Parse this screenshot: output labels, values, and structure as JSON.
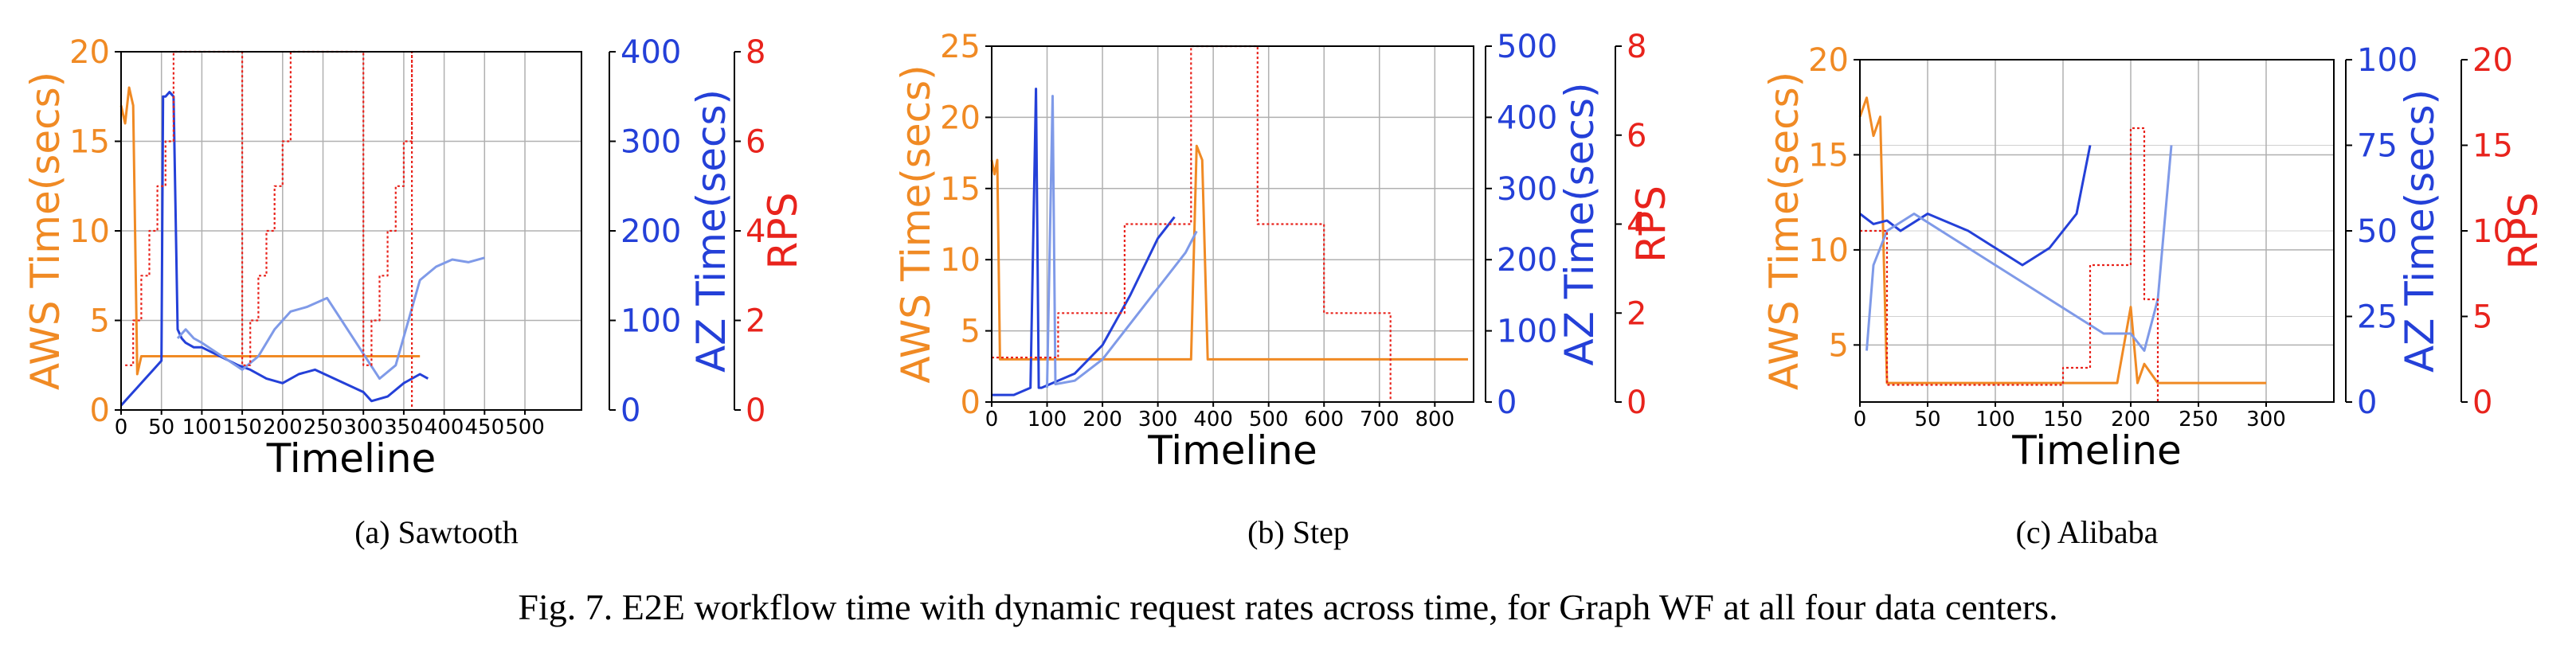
{
  "colors": {
    "aws": "#f08a24",
    "aws_light": "#f2c230",
    "az": "#2440d8",
    "az_light": "#7f9ae8",
    "rps": "#e8231c",
    "grid": "#b0b0b0"
  },
  "figure_caption": "Fig. 7.  E2E workflow time with dynamic request rates across time, for Graph WF at all four data centers.",
  "chart_data": [
    {
      "type": "line",
      "caption": "(a) Sawtooth",
      "xlabel": "Timeline",
      "y_left_label": "AWS Time(secs)",
      "y_right1_label": "AZ Time(secs)",
      "y_right2_label": "RPS",
      "xlim": [
        0,
        570
      ],
      "x_ticks": [
        0,
        50,
        100,
        150,
        200,
        250,
        300,
        350,
        400,
        450,
        500
      ],
      "aws_ylim": [
        0,
        20
      ],
      "aws_ticks": [
        0,
        5,
        10,
        15,
        20
      ],
      "az_ylim": [
        0,
        400
      ],
      "az_ticks": [
        0,
        100,
        200,
        300,
        400
      ],
      "rps_ylim": [
        0,
        8
      ],
      "rps_ticks": [
        0,
        2,
        4,
        6,
        8
      ],
      "series": [
        {
          "name": "AWS",
          "axis": "aws",
          "role": "aws",
          "x": [
            0,
            5,
            10,
            15,
            20,
            25,
            30,
            40,
            50,
            60,
            70,
            80,
            150,
            160,
            180,
            200,
            230,
            240,
            260,
            280,
            300,
            310,
            320,
            340,
            360,
            370
          ],
          "y": [
            17,
            16,
            18,
            17,
            2,
            3,
            3,
            3,
            3,
            3,
            3,
            3,
            3,
            3,
            3,
            3,
            3,
            3,
            3,
            3,
            3,
            3,
            3,
            3,
            3,
            3
          ]
        },
        {
          "name": "AZ dark",
          "axis": "az",
          "role": "az",
          "x": [
            0,
            10,
            20,
            30,
            40,
            50,
            52,
            55,
            60,
            65,
            70,
            75,
            80,
            90,
            100,
            145,
            160,
            180,
            200,
            220,
            240,
            300,
            310,
            330,
            350,
            370,
            380
          ],
          "y": [
            5,
            15,
            25,
            35,
            45,
            55,
            350,
            350,
            355,
            350,
            90,
            80,
            75,
            70,
            70,
            50,
            45,
            35,
            30,
            40,
            45,
            20,
            10,
            15,
            30,
            40,
            35
          ]
        },
        {
          "name": "AZ light",
          "axis": "az",
          "role": "az_light",
          "x": [
            70,
            80,
            90,
            100,
            150,
            170,
            190,
            210,
            230,
            255,
            320,
            340,
            370,
            390,
            410,
            430,
            450
          ],
          "y": [
            80,
            90,
            80,
            75,
            45,
            60,
            90,
            110,
            115,
            125,
            35,
            50,
            145,
            160,
            168,
            165,
            170
          ]
        },
        {
          "name": "RPS",
          "axis": "rps",
          "role": "rps",
          "step": true,
          "x": [
            5,
            15,
            25,
            35,
            45,
            55,
            65,
            150,
            160,
            170,
            180,
            190,
            200,
            210,
            300,
            310,
            320,
            330,
            340,
            350,
            360
          ],
          "y": [
            1,
            2,
            3,
            4,
            5,
            6,
            8,
            1,
            2,
            3,
            4,
            5,
            6,
            8,
            1,
            2,
            3,
            4,
            5,
            6,
            8
          ]
        }
      ]
    },
    {
      "type": "line",
      "caption": "(b) Step",
      "xlabel": "Timeline",
      "y_left_label": "AWS Time(secs)",
      "y_right1_label": "AZ Time(secs)",
      "y_right2_label": "RPS",
      "xlim": [
        0,
        870
      ],
      "x_ticks": [
        0,
        100,
        200,
        300,
        400,
        500,
        600,
        700,
        800
      ],
      "aws_ylim": [
        0,
        25
      ],
      "aws_ticks": [
        0,
        5,
        10,
        15,
        20,
        25
      ],
      "az_ylim": [
        0,
        500
      ],
      "az_ticks": [
        0,
        100,
        200,
        300,
        400,
        500
      ],
      "rps_ylim": [
        0,
        8
      ],
      "rps_ticks": [
        0,
        2,
        4,
        6,
        8
      ],
      "series": [
        {
          "name": "AWS",
          "axis": "aws",
          "role": "aws",
          "x": [
            0,
            5,
            10,
            15,
            20,
            100,
            200,
            300,
            360,
            370,
            380,
            390,
            500,
            600,
            700,
            800,
            860
          ],
          "y": [
            17,
            16,
            17,
            3,
            3,
            3,
            3,
            3,
            3,
            18,
            17,
            3,
            3,
            3,
            3,
            3,
            3
          ]
        },
        {
          "name": "AZ dark",
          "axis": "az",
          "role": "az",
          "x": [
            0,
            40,
            70,
            80,
            85,
            90,
            150,
            200,
            250,
            300,
            330
          ],
          "y": [
            10,
            10,
            20,
            440,
            20,
            20,
            40,
            80,
            150,
            230,
            260
          ]
        },
        {
          "name": "AZ light",
          "axis": "az",
          "role": "az_light",
          "x": [
            100,
            110,
            115,
            150,
            200,
            250,
            300,
            350,
            370
          ],
          "y": [
            20,
            430,
            25,
            30,
            60,
            110,
            160,
            210,
            240
          ]
        },
        {
          "name": "RPS",
          "axis": "rps",
          "role": "rps",
          "step": true,
          "x": [
            0,
            50,
            120,
            240,
            360,
            480,
            600,
            720,
            720
          ],
          "y": [
            1,
            1,
            2,
            4,
            8,
            4,
            2,
            1,
            1
          ]
        }
      ]
    },
    {
      "type": "line",
      "caption": "(c) Alibaba",
      "xlabel": "Timeline",
      "y_left_label": "AWS Time(secs)",
      "y_right1_label": "AZ Time(secs)",
      "y_right2_label": "RPS",
      "xlim": [
        0,
        350
      ],
      "x_ticks": [
        0,
        50,
        100,
        150,
        200,
        250,
        300
      ],
      "aws_ylim": [
        2,
        20
      ],
      "aws_ticks": [
        5,
        10,
        15,
        20
      ],
      "az_ylim": [
        0,
        100
      ],
      "az_ticks": [
        0,
        25,
        50,
        75,
        100
      ],
      "rps_ylim": [
        0,
        20
      ],
      "rps_ticks": [
        0,
        5,
        10,
        15,
        20
      ],
      "series": [
        {
          "name": "AWS",
          "axis": "aws",
          "role": "aws",
          "x": [
            0,
            5,
            10,
            15,
            20,
            25,
            50,
            100,
            150,
            190,
            200,
            205,
            210,
            220,
            230,
            250,
            300
          ],
          "y": [
            17,
            18,
            16,
            17,
            3,
            3,
            3,
            3,
            3,
            3,
            7,
            3,
            4,
            3,
            3,
            3,
            3
          ]
        },
        {
          "name": "AZ dark",
          "axis": "az",
          "role": "az",
          "x": [
            0,
            10,
            20,
            30,
            50,
            80,
            100,
            120,
            140,
            160,
            170
          ],
          "y": [
            55,
            52,
            53,
            50,
            55,
            50,
            45,
            40,
            45,
            55,
            75
          ]
        },
        {
          "name": "AZ light",
          "axis": "az",
          "role": "az_light",
          "x": [
            5,
            10,
            20,
            40,
            60,
            80,
            100,
            120,
            140,
            160,
            180,
            200,
            210,
            220,
            230
          ],
          "y": [
            15,
            40,
            50,
            55,
            50,
            45,
            40,
            35,
            30,
            25,
            20,
            20,
            15,
            30,
            75
          ]
        },
        {
          "name": "RPS",
          "axis": "rps",
          "role": "rps",
          "step": true,
          "x": [
            0,
            20,
            75,
            150,
            170,
            200,
            210,
            220
          ],
          "y": [
            10,
            1,
            1,
            2,
            8,
            16,
            6,
            1
          ]
        }
      ]
    }
  ]
}
